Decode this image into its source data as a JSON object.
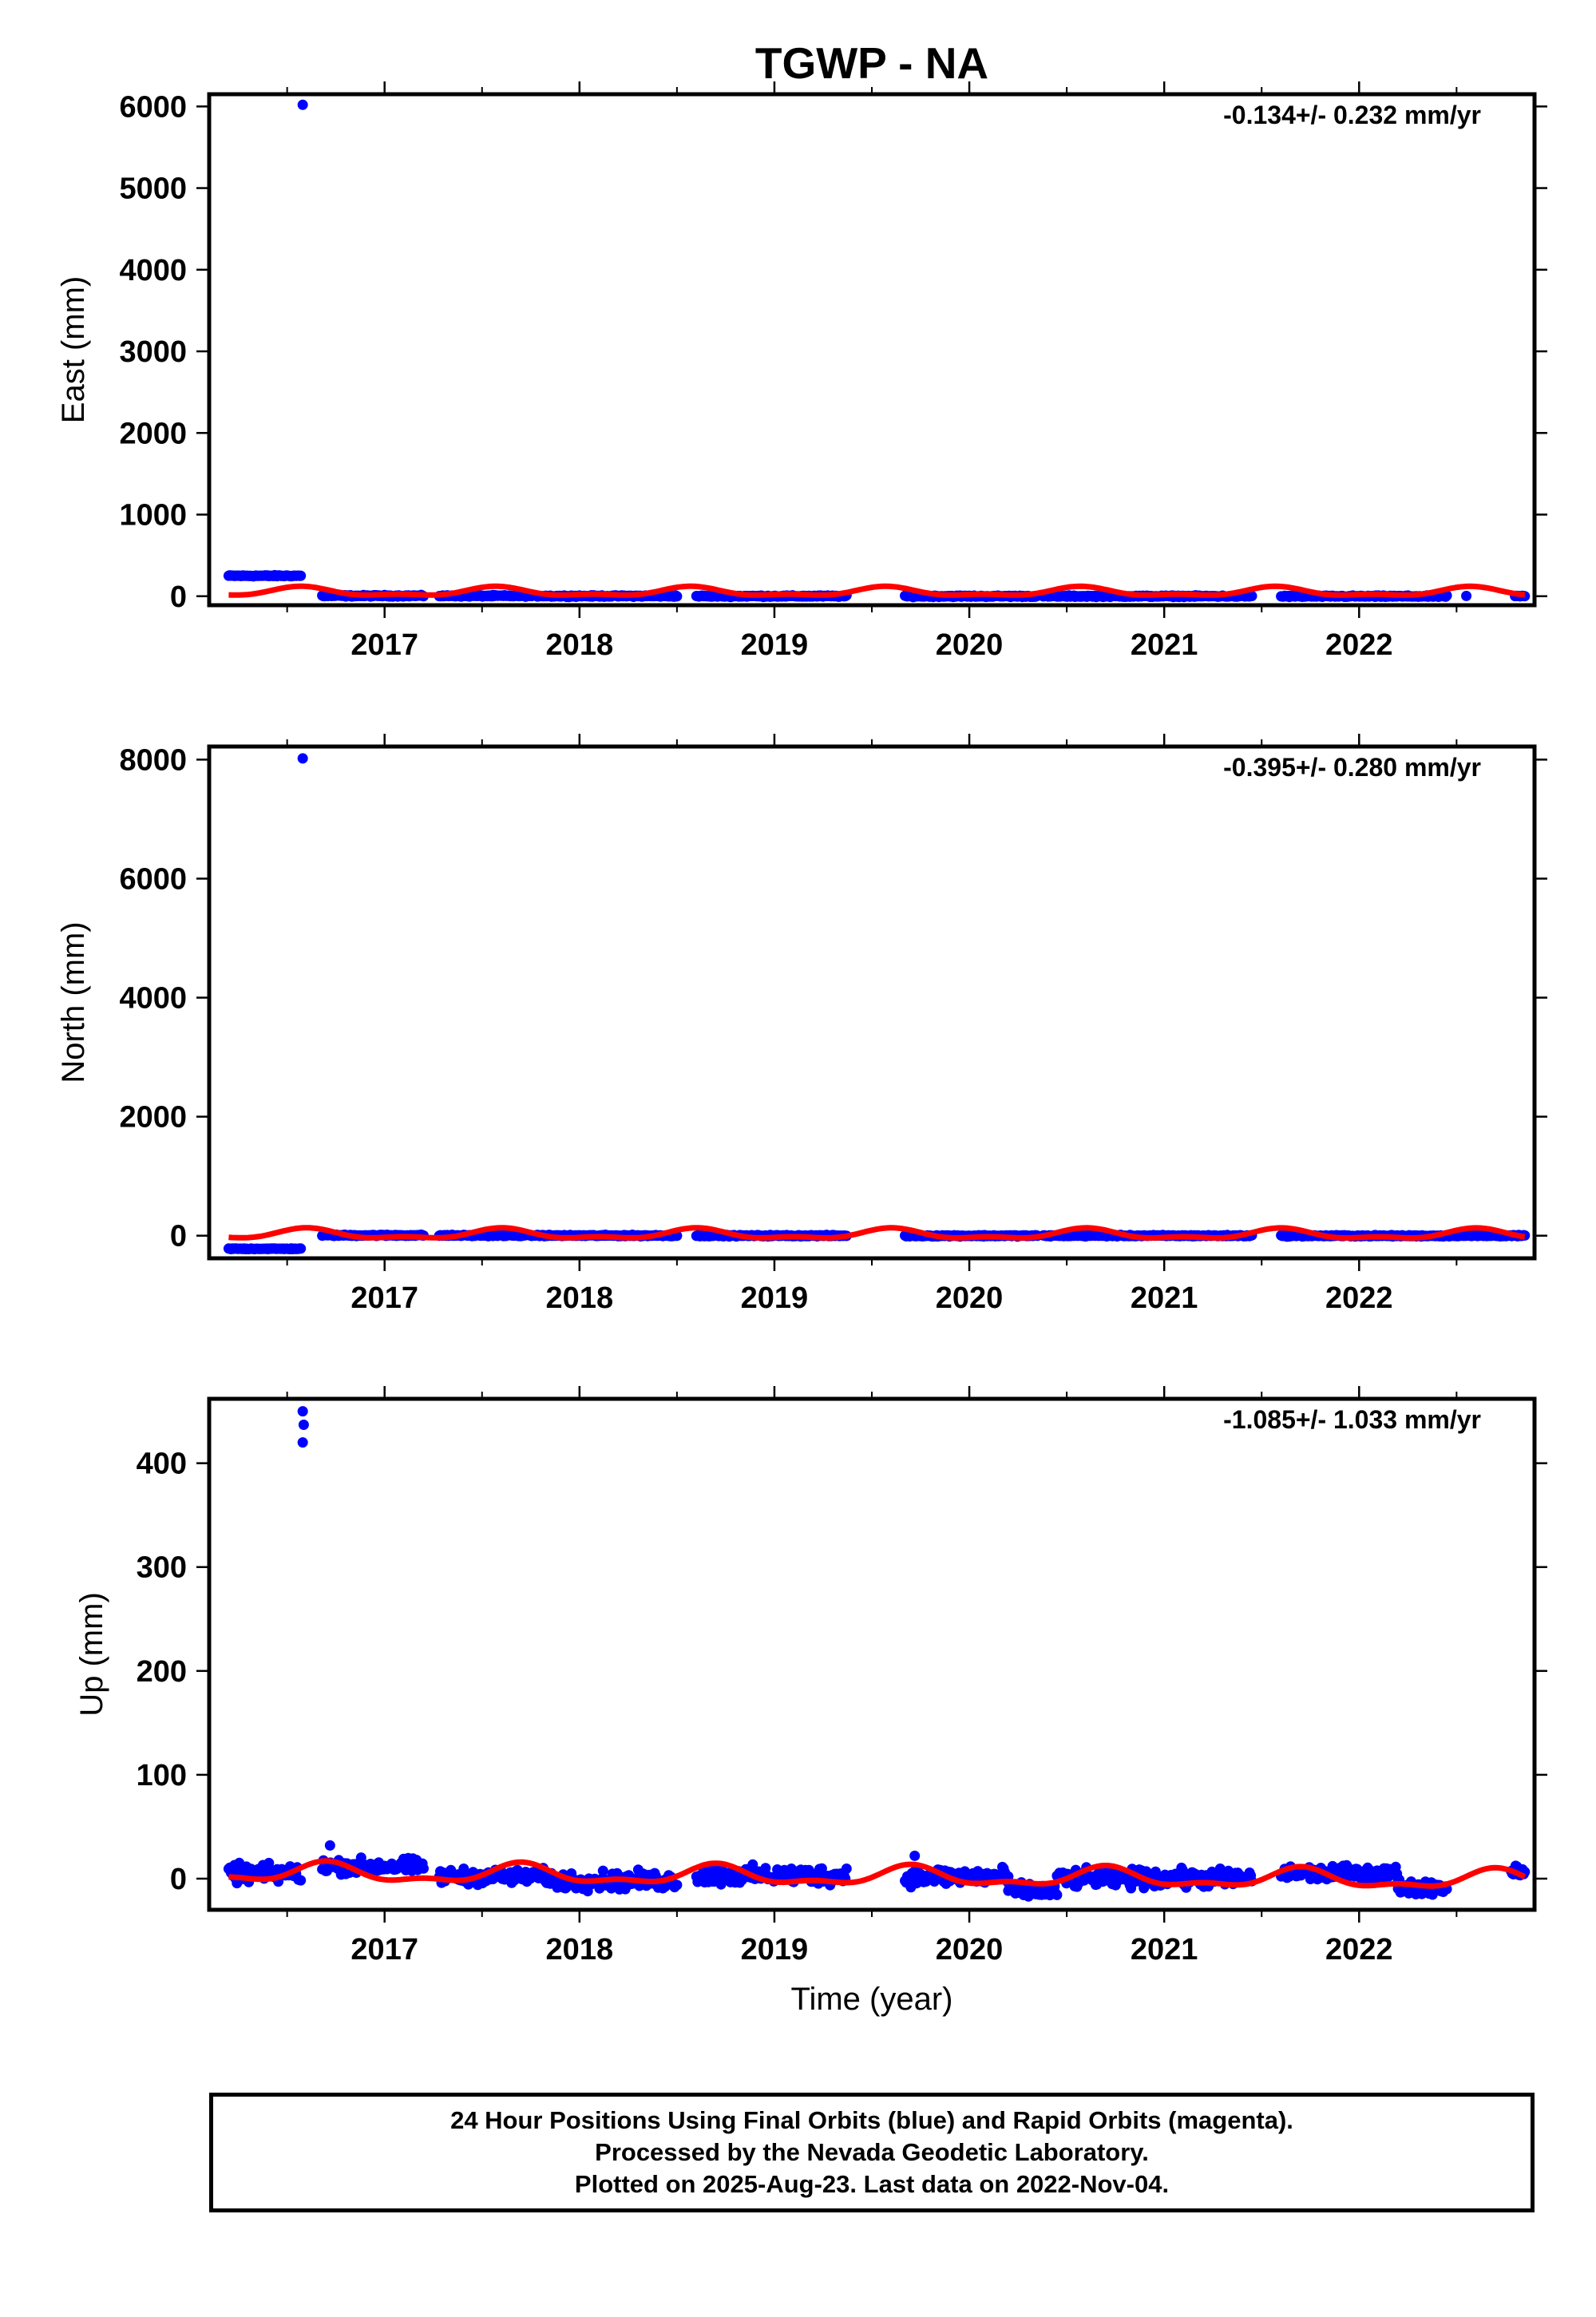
{
  "title": "TGWP - NA",
  "colors": {
    "final_orbits": "#0000ff",
    "model_fit": "#ff0000",
    "frame": "#000000"
  },
  "chart_data": [
    {
      "type": "scatter",
      "ylabel": "East (mm)",
      "xlabel": "",
      "rate_label": "-0.134+/- 0.232 mm/yr",
      "xlim": [
        2016.1,
        2022.9
      ],
      "ylim": [
        -110,
        6150
      ],
      "yticks": [
        0,
        1000,
        2000,
        3000,
        4000,
        5000,
        6000
      ],
      "xticks": [
        2017,
        2018,
        2019,
        2020,
        2021,
        2022
      ],
      "xtick_labels": [
        "2017",
        "2018",
        "2019",
        "2020",
        "2021",
        "2022"
      ],
      "grid": false,
      "series": [
        {
          "kind": "points",
          "color": "#0000ff",
          "segments": [
            [
              2016.2,
              2016.57,
              250,
              5
            ],
            [
              2016.68,
              2017.2,
              5,
              6
            ],
            [
              2017.28,
              2017.85,
              4,
              6
            ],
            [
              2017.85,
              2018.5,
              2,
              6
            ],
            [
              2018.6,
              2019.37,
              1,
              6
            ],
            [
              2019.67,
              2020.35,
              0,
              6
            ],
            [
              2020.38,
              2021.45,
              0,
              6
            ],
            [
              2021.6,
              2022.45,
              -1,
              6
            ],
            [
              2022.8,
              2022.85,
              0,
              6
            ]
          ],
          "extra": [
            [
              2016.58,
              6020
            ],
            [
              2022.55,
              4
            ]
          ]
        },
        {
          "kind": "line",
          "color": "#ff0000",
          "offset": 50,
          "amplitude": 48,
          "phase_year": 2016.57,
          "trend_per_year": -0.134
        }
      ]
    },
    {
      "type": "scatter",
      "ylabel": "North (mm)",
      "xlabel": "",
      "rate_label": "-0.395+/- 0.280 mm/yr",
      "xlim": [
        2016.1,
        2022.9
      ],
      "ylim": [
        -380,
        8220
      ],
      "yticks": [
        0,
        2000,
        4000,
        6000,
        8000
      ],
      "xticks": [
        2017,
        2018,
        2019,
        2020,
        2021,
        2022
      ],
      "xtick_labels": [
        "2017",
        "2018",
        "2019",
        "2020",
        "2021",
        "2022"
      ],
      "grid": false,
      "series": [
        {
          "kind": "points",
          "color": "#0000ff",
          "segments": [
            [
              2016.2,
              2016.57,
              -220,
              5
            ],
            [
              2016.68,
              2017.2,
              6,
              8
            ],
            [
              2017.28,
              2017.85,
              4,
              8
            ],
            [
              2017.85,
              2018.5,
              2,
              8
            ],
            [
              2018.6,
              2019.37,
              0,
              8
            ],
            [
              2019.67,
              2020.35,
              -1,
              8
            ],
            [
              2020.38,
              2021.45,
              0,
              8
            ],
            [
              2021.6,
              2022.45,
              -2,
              8
            ],
            [
              2022.45,
              2022.85,
              0,
              8
            ]
          ],
          "extra": [
            [
              2016.58,
              8020
            ]
          ]
        },
        {
          "kind": "line",
          "color": "#ff0000",
          "offset": 20,
          "amplitude": 75,
          "phase_year": 2016.6,
          "trend_per_year": -0.395
        }
      ]
    },
    {
      "type": "scatter",
      "ylabel": "Up (mm)",
      "xlabel": "Time (year)",
      "rate_label": "-1.085+/- 1.033 mm/yr",
      "xlim": [
        2016.1,
        2022.9
      ],
      "ylim": [
        -30,
        462
      ],
      "yticks": [
        0,
        100,
        200,
        300,
        400
      ],
      "xticks": [
        2017,
        2018,
        2019,
        2020,
        2021,
        2022
      ],
      "xtick_labels": [
        "2017",
        "2018",
        "2019",
        "2020",
        "2021",
        "2022"
      ],
      "grid": false,
      "series": [
        {
          "kind": "points",
          "color": "#0000ff",
          "segments": [
            [
              2016.2,
              2016.57,
              5,
              6
            ],
            [
              2016.68,
              2017.2,
              12,
              5
            ],
            [
              2017.28,
              2017.85,
              2,
              5
            ],
            [
              2017.85,
              2018.5,
              -2,
              6
            ],
            [
              2018.6,
              2019.37,
              3,
              6
            ],
            [
              2019.67,
              2020.2,
              2,
              6
            ],
            [
              2020.2,
              2020.45,
              -12,
              5
            ],
            [
              2020.45,
              2021.45,
              0,
              6
            ],
            [
              2021.6,
              2022.2,
              5,
              5
            ],
            [
              2022.2,
              2022.45,
              -8,
              5
            ],
            [
              2022.78,
              2022.85,
              8,
              5
            ]
          ],
          "extra": [
            [
              2016.58,
              450
            ],
            [
              2016.585,
              437
            ],
            [
              2016.58,
              420
            ],
            [
              2016.72,
              32
            ],
            [
              2019.72,
              22
            ]
          ]
        },
        {
          "kind": "line",
          "color": "#ff0000",
          "offset": 2,
          "amplitude": 8,
          "phase_year": 2016.7,
          "trend_per_year": -1.085
        }
      ]
    }
  ],
  "footer": {
    "line1": "24 Hour Positions Using Final Orbits (blue) and Rapid Orbits (magenta).",
    "line2": "Processed by the Nevada Geodetic Laboratory.",
    "line3": "Plotted on 2025-Aug-23. Last data on 2022-Nov-04."
  }
}
